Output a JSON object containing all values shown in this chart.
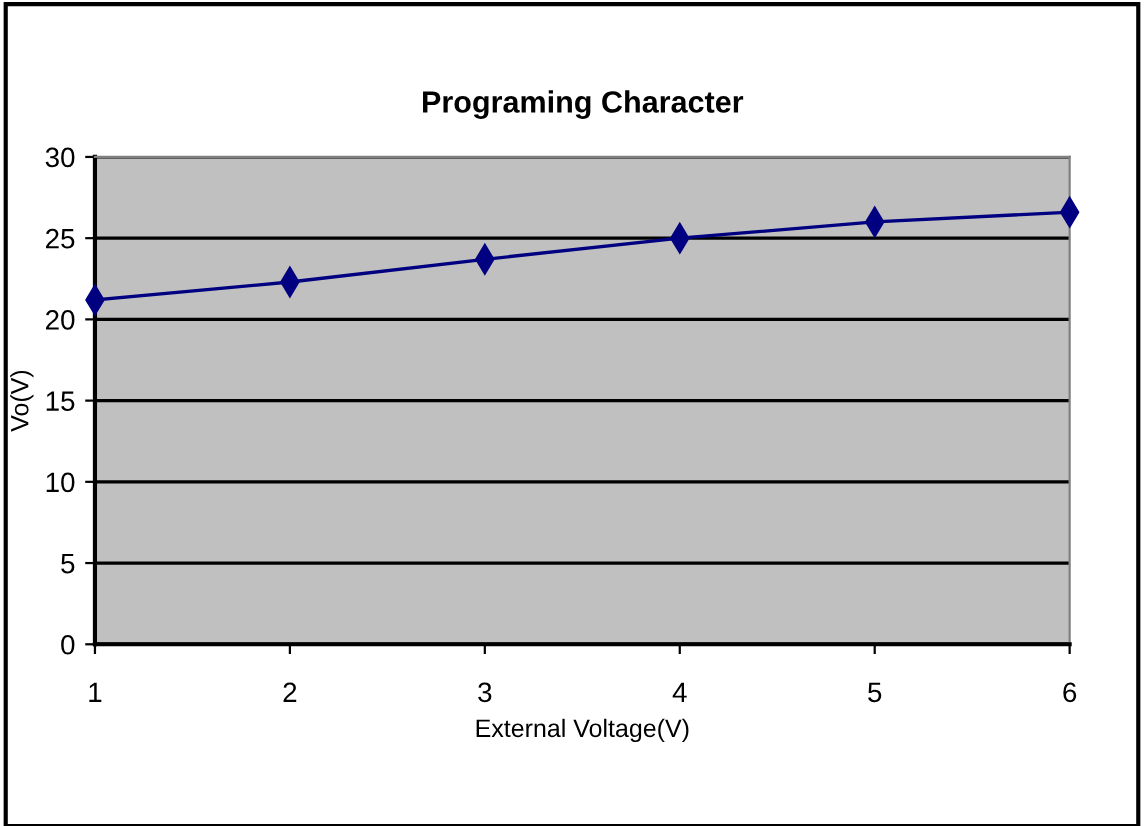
{
  "chart_data": {
    "type": "line",
    "title": "Programing Character",
    "xlabel": "External Voltage(V)",
    "ylabel": "Vo(V)",
    "x": [
      1,
      2,
      3,
      4,
      5,
      6
    ],
    "series": [
      {
        "color": "#000080",
        "values": [
          21.2,
          22.3,
          23.7,
          25.0,
          26.0,
          26.6
        ]
      }
    ],
    "xlim": [
      1,
      6
    ],
    "xticks": [
      1,
      2,
      3,
      4,
      5,
      6
    ],
    "ylim": [
      0,
      30
    ],
    "yticks": [
      0,
      5,
      10,
      15,
      20,
      25,
      30
    ],
    "grid": "y",
    "marker": "diamond",
    "line_style": "solid",
    "legend": false
  }
}
